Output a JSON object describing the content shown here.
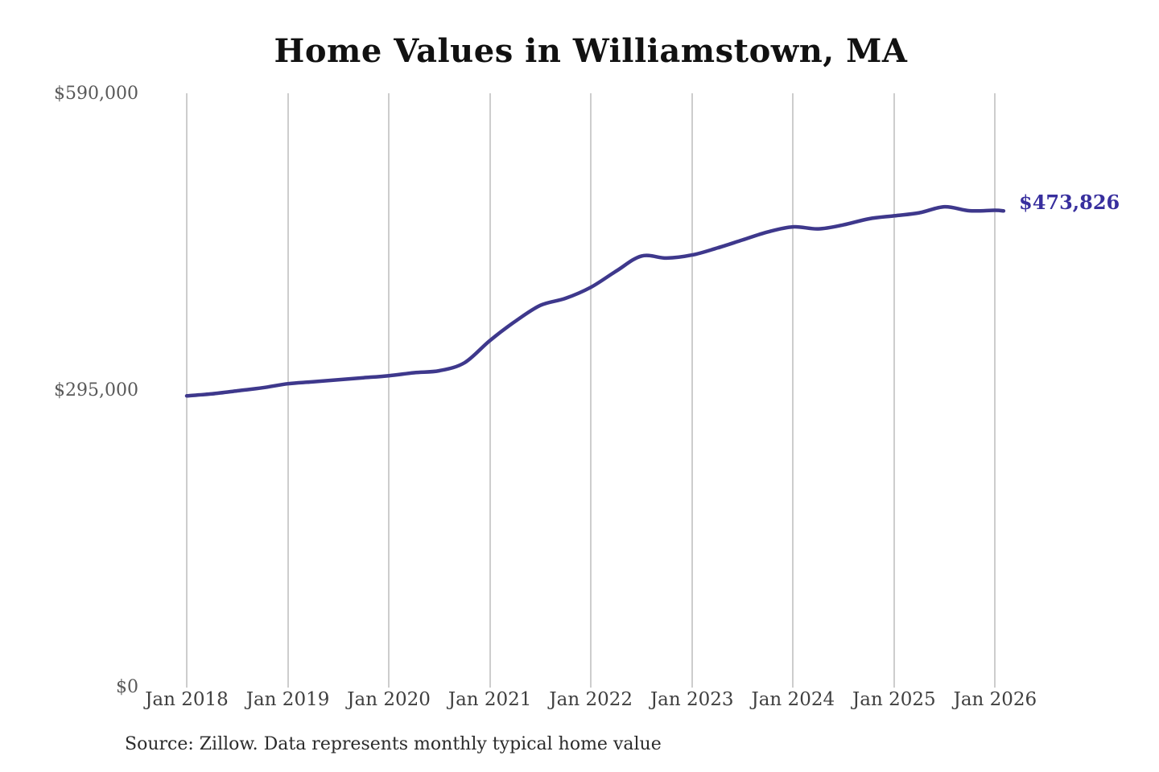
{
  "chart": {
    "title": "Home Values in Williamstown, MA",
    "source_note": "Source: Zillow. Data represents monthly typical home value",
    "end_label": "$473,826"
  },
  "chart_data": {
    "type": "line",
    "title": "Home Values in Williamstown, MA",
    "xlabel": "",
    "ylabel": "",
    "ylim": [
      0,
      590000
    ],
    "xlim_months": [
      "2018-01",
      "2026-02"
    ],
    "grid": "vertical-only",
    "legend": "none",
    "x_tick_labels": [
      "Jan 2018",
      "Jan 2019",
      "Jan 2020",
      "Jan 2021",
      "Jan 2022",
      "Jan 2023",
      "Jan 2024",
      "Jan 2025",
      "Jan 2026"
    ],
    "y_ticks": [
      {
        "value": 0,
        "label": "$0"
      },
      {
        "value": 295000,
        "label": "$295,000"
      },
      {
        "value": 590000,
        "label": "$590,000"
      }
    ],
    "end_value_label": "$473,826",
    "final_value": 473826,
    "series": [
      {
        "name": "Monthly typical home value",
        "x": [
          "2018-01",
          "2018-04",
          "2018-07",
          "2018-10",
          "2019-01",
          "2019-04",
          "2019-07",
          "2019-10",
          "2020-01",
          "2020-04",
          "2020-07",
          "2020-10",
          "2021-01",
          "2021-04",
          "2021-07",
          "2021-10",
          "2022-01",
          "2022-04",
          "2022-07",
          "2022-10",
          "2023-01",
          "2023-04",
          "2023-07",
          "2023-10",
          "2024-01",
          "2024-04",
          "2024-07",
          "2024-10",
          "2025-01",
          "2025-04",
          "2025-07",
          "2025-10",
          "2026-01",
          "2026-02"
        ],
        "values": [
          290000,
          292000,
          295000,
          298000,
          302000,
          304000,
          306000,
          308000,
          310000,
          313000,
          315000,
          323000,
          345000,
          364000,
          380000,
          387000,
          398000,
          414000,
          429000,
          427000,
          430000,
          437000,
          445000,
          453000,
          458000,
          456000,
          460000,
          466000,
          469000,
          472000,
          478000,
          474000,
          474500,
          473826
        ]
      }
    ],
    "colors": {
      "line": "#3e388c",
      "end_label": "#382f9e",
      "grid": "#cdcdcd",
      "title": "#111111",
      "x_tick": "#3f3f3f",
      "y_tick": "#595959",
      "source": "#2b2b2b",
      "background": "#ffffff"
    }
  }
}
